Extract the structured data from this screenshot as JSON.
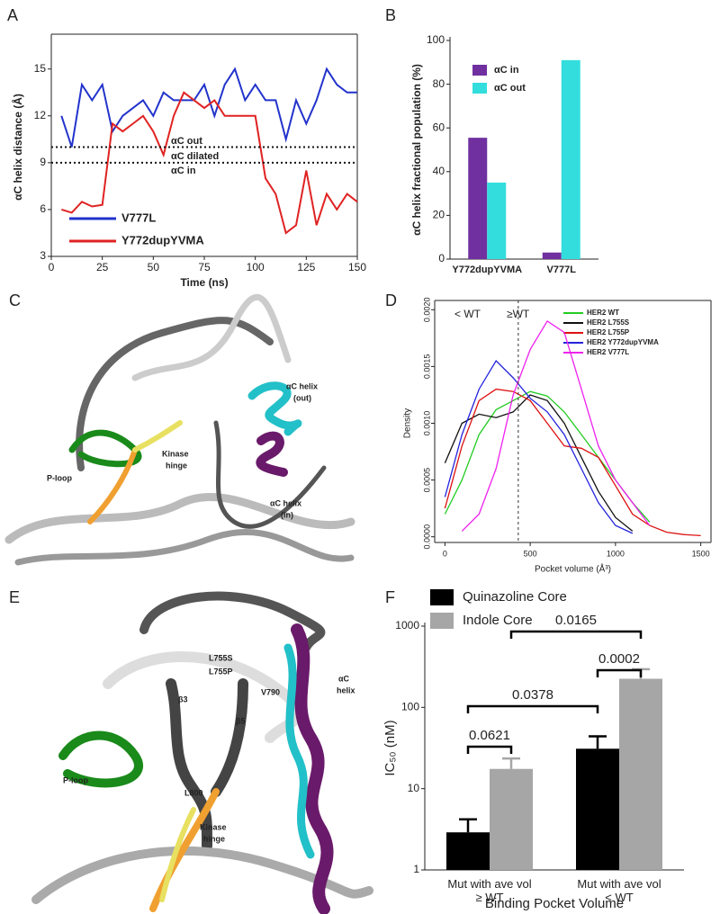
{
  "chart_data": [
    {
      "panel": "A",
      "type": "line",
      "xlabel": "Time (ns)",
      "ylabel": "αC helix distance (Å)",
      "x": [
        5,
        10,
        15,
        20,
        25,
        30,
        35,
        40,
        45,
        50,
        55,
        60,
        65,
        70,
        75,
        80,
        85,
        90,
        95,
        100,
        105,
        110,
        115,
        120,
        125,
        130,
        135,
        140,
        145,
        150
      ],
      "series": [
        {
          "name": "V777L",
          "color": "#2233cc",
          "values": [
            12,
            10,
            14,
            13,
            14,
            11,
            12,
            12.5,
            13,
            12,
            13.5,
            13,
            13,
            13,
            14,
            12,
            14,
            15,
            13,
            14,
            13,
            13,
            10.5,
            13,
            11.5,
            13,
            15,
            14,
            13.5,
            13.5
          ]
        },
        {
          "name": "Y772dupYVMA",
          "color": "#e02222",
          "values": [
            6,
            5.8,
            6.5,
            6.2,
            6.3,
            11.5,
            11,
            11.5,
            12,
            11,
            9.5,
            12,
            13.5,
            13,
            12.5,
            13,
            12,
            12,
            12,
            12,
            8,
            7,
            4.5,
            5,
            8.5,
            5,
            7,
            6,
            7,
            6.5
          ]
        }
      ],
      "xlim": [
        0,
        150
      ],
      "xticks": [
        0,
        25,
        50,
        75,
        100,
        125,
        150
      ],
      "ylim": [
        3,
        17
      ],
      "yticks": [
        3,
        6,
        9,
        12,
        15
      ],
      "hlines": [
        10,
        9
      ],
      "annotations": [
        "αC out",
        "αC dilated",
        "αC in"
      ],
      "legend": "lower left"
    },
    {
      "panel": "B",
      "type": "bar",
      "ylabel": "αC helix fractional population (%)",
      "categories": [
        "Y772dupYVMA",
        "V777L"
      ],
      "series": [
        {
          "name": "αC in",
          "color": "#7030a0",
          "values": [
            55.5,
            3
          ]
        },
        {
          "name": "αC out",
          "color": "#33dddd",
          "values": [
            35,
            91
          ]
        }
      ],
      "ylim": [
        0,
        100
      ],
      "yticks": [
        0,
        20,
        40,
        60,
        80,
        100
      ],
      "legend": "upper left"
    },
    {
      "panel": "D",
      "type": "line",
      "xlabel": "Pocket volume (Å³)",
      "ylabel": "Density",
      "x": [
        0,
        100,
        200,
        300,
        400,
        500,
        600,
        700,
        800,
        900,
        1000,
        1100,
        1200,
        1300,
        1400,
        1500
      ],
      "series": [
        {
          "name": "HER2 WT",
          "color": "#22cc22",
          "values": [
            0.0002,
            0.0005,
            0.0009,
            0.00112,
            0.0012,
            0.00128,
            0.00124,
            0.0011,
            0.0009,
            0.0007,
            0.0005,
            0.0003,
            0.00013,
            null,
            null,
            null
          ]
        },
        {
          "name": "HER2 L755S",
          "color": "#111111",
          "values": [
            0.00065,
            0.001,
            0.00108,
            0.00105,
            0.0011,
            0.00125,
            0.0012,
            0.001,
            0.0007,
            0.0004,
            0.00017,
            5e-05,
            null,
            null,
            null,
            null
          ]
        },
        {
          "name": "HER2 L755P",
          "color": "#dd1111",
          "values": [
            0.00025,
            0.0008,
            0.0012,
            0.0013,
            0.00128,
            0.0012,
            0.001,
            0.0008,
            0.00078,
            0.0007,
            0.00045,
            0.0002,
            0.0001,
            4e-05,
            2e-05,
            1e-05
          ]
        },
        {
          "name": "HER2 Y772dupYVMA",
          "color": "#2222dd",
          "values": [
            0.00035,
            0.0009,
            0.0013,
            0.00155,
            0.0014,
            0.00122,
            0.0011,
            0.0009,
            0.0006,
            0.0003,
            0.0001,
            3e-05,
            null,
            null,
            null,
            null
          ]
        },
        {
          "name": "HER2 V777L",
          "color": "#ee22ee",
          "values": [
            null,
            5e-05,
            0.0002,
            0.0006,
            0.00125,
            0.00165,
            0.0019,
            0.0018,
            0.0013,
            0.0008,
            0.0005,
            0.0003,
            0.0001,
            null,
            null,
            null
          ]
        }
      ],
      "xlim": [
        -60,
        1560
      ],
      "xticks": [
        0,
        500,
        1000,
        1500
      ],
      "ylim": [
        -5e-05,
        0.00205
      ],
      "yticks": [
        {
          "value": 0,
          "label": "0.0000"
        },
        {
          "value": 0.0005,
          "label": "0.0005"
        },
        {
          "value": 0.001,
          "label": "0.0010"
        },
        {
          "value": 0.0015,
          "label": "0.0015"
        },
        {
          "value": 0.002,
          "label": "0.0020"
        }
      ],
      "vline": 430,
      "annotations": [
        "< WT",
        "≥WT"
      ],
      "legend": "upper right"
    },
    {
      "panel": "F",
      "type": "bar",
      "log_scale": true,
      "xlabel": "Binding Pocket Volume",
      "ylabel": "IC₅₀ (nM)",
      "categories": [
        "Mut with ave vol ≥ WT",
        "Mut with ave vol < WT"
      ],
      "series": [
        {
          "name": "Quinazoline Core",
          "color": "#000000",
          "values": [
            2.9,
            31
          ],
          "errors": [
            1.3,
            13
          ]
        },
        {
          "name": "Indole Core",
          "color": "#a6a6a6",
          "values": [
            17.5,
            225
          ],
          "errors": [
            6,
            70
          ]
        }
      ],
      "ylim": [
        1,
        1000
      ],
      "yticks": [
        1,
        10,
        100,
        1000
      ],
      "p_values": [
        "0.0621",
        "0.0378",
        "0.0002",
        "0.0165"
      ],
      "legend": "upper left"
    }
  ],
  "panel_c": {
    "panel": "C",
    "labels": [
      "αC helix",
      "(out)",
      "Kinase",
      "hinge",
      "P-loop",
      "αC helix",
      "(in)"
    ]
  },
  "panel_e": {
    "panel": "E",
    "labels": [
      "L755S",
      "L755P",
      "β3",
      "β5",
      "V790",
      "αC",
      "helix",
      "P-loop",
      "L800",
      "Kinase",
      "hinge"
    ]
  }
}
